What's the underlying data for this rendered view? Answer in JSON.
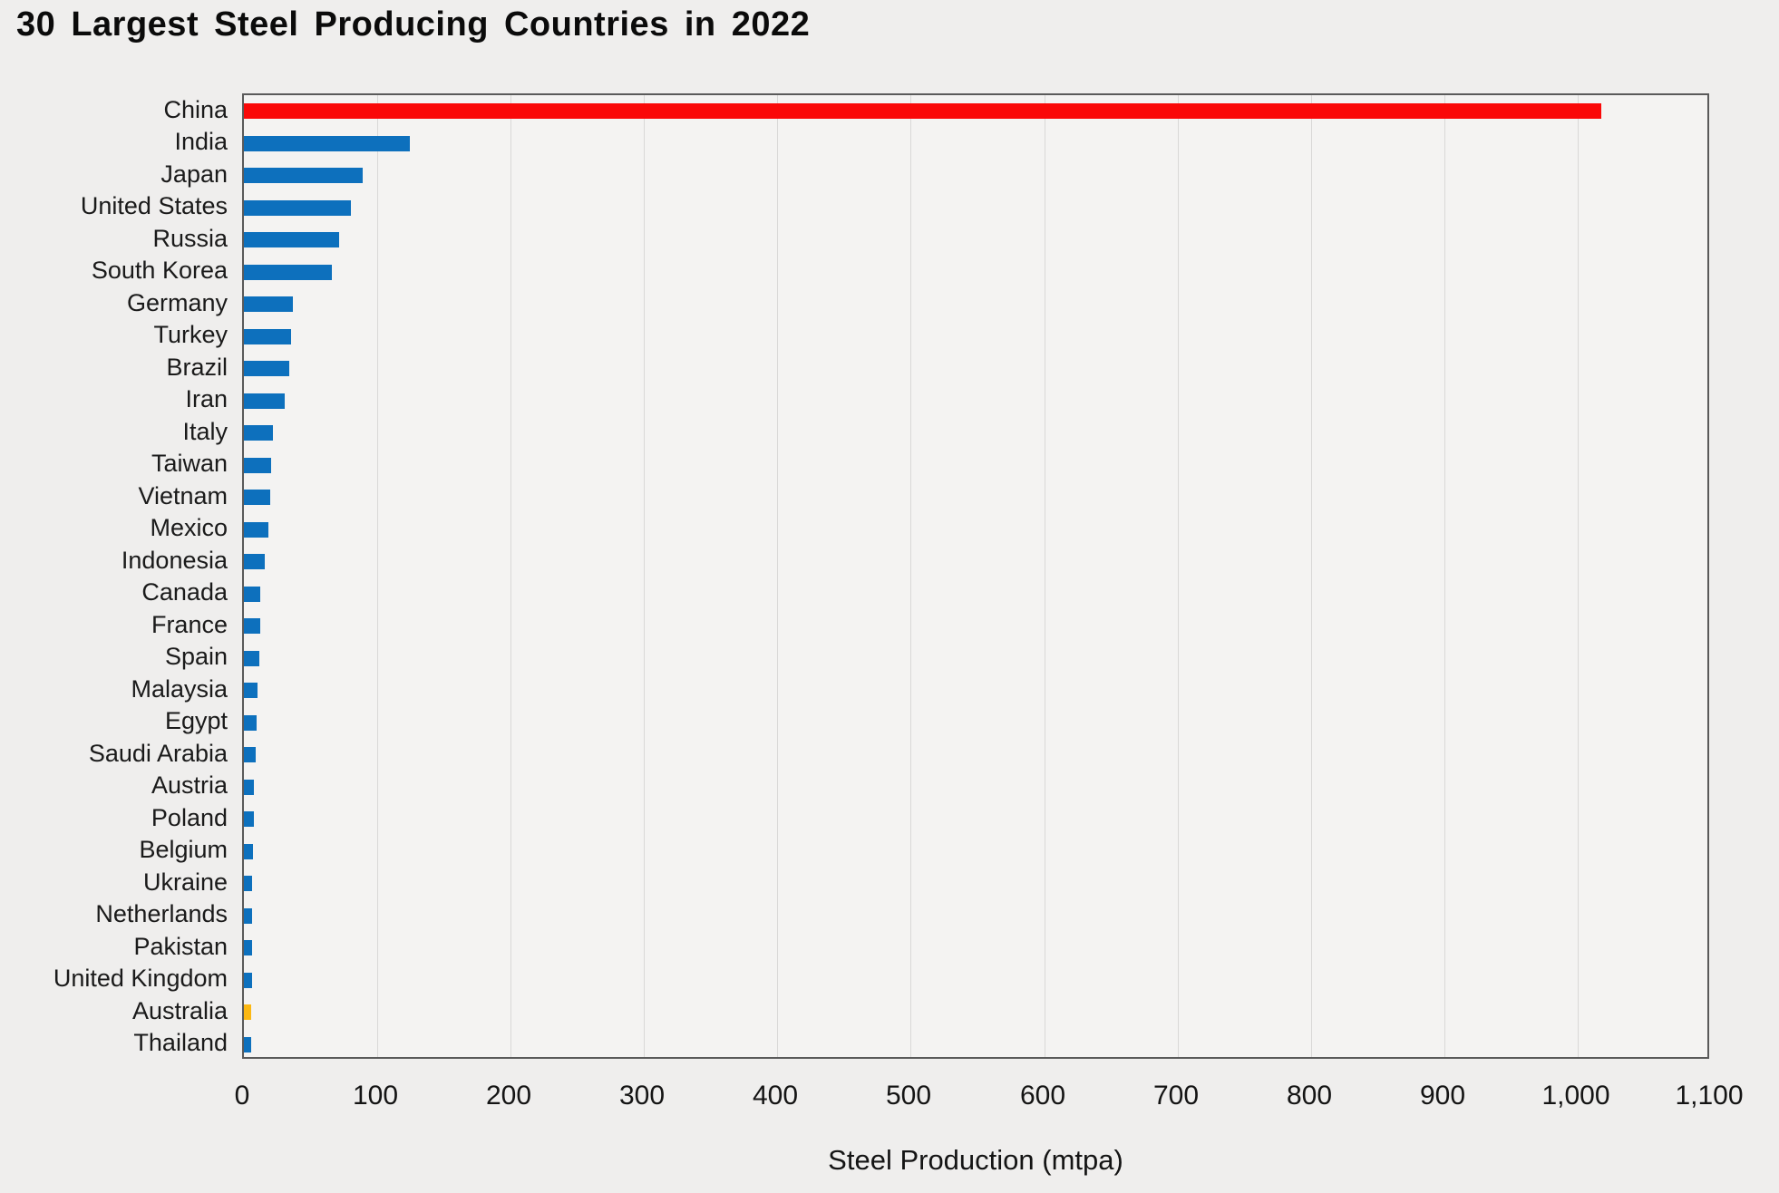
{
  "chart_data": {
    "type": "bar",
    "orientation": "horizontal",
    "title": "30 Largest Steel Producing Countries in 2022",
    "xlabel": "Steel Production (mtpa)",
    "ylabel": "",
    "xlim": [
      0,
      1100
    ],
    "grid": "vertical gridlines every 100, legend none",
    "x_ticks": [
      {
        "value": 0,
        "label": "0"
      },
      {
        "value": 100,
        "label": "100"
      },
      {
        "value": 200,
        "label": "200"
      },
      {
        "value": 300,
        "label": "300"
      },
      {
        "value": 400,
        "label": "400"
      },
      {
        "value": 500,
        "label": "500"
      },
      {
        "value": 600,
        "label": "600"
      },
      {
        "value": 700,
        "label": "700"
      },
      {
        "value": 800,
        "label": "800"
      },
      {
        "value": 900,
        "label": "900"
      },
      {
        "value": 1000,
        "label": "1,000"
      },
      {
        "value": 1100,
        "label": "1,100"
      }
    ],
    "categories": [
      "China",
      "India",
      "Japan",
      "United States",
      "Russia",
      "South Korea",
      "Germany",
      "Turkey",
      "Brazil",
      "Iran",
      "Italy",
      "Taiwan",
      "Vietnam",
      "Mexico",
      "Indonesia",
      "Canada",
      "France",
      "Spain",
      "Malaysia",
      "Egypt",
      "Saudi Arabia",
      "Austria",
      "Poland",
      "Belgium",
      "Ukraine",
      "Netherlands",
      "Pakistan",
      "United Kingdom",
      "Australia",
      "Thailand"
    ],
    "values": [
      1018,
      124.7,
      89.2,
      80.5,
      71.5,
      65.9,
      36.8,
      35.1,
      34.0,
      30.6,
      21.6,
      20.7,
      20.0,
      18.2,
      15.6,
      12.1,
      12.1,
      11.5,
      10.0,
      9.8,
      9.1,
      7.5,
      7.4,
      6.9,
      6.3,
      6.1,
      6.0,
      6.0,
      5.7,
      5.4
    ],
    "bar_color_default": "#0d70bd",
    "bar_color_highlights": {
      "China": "#fa0808",
      "Australia": "#fcb813"
    }
  },
  "colors": {
    "page_background": "#efeeed",
    "plot_background": "#f4f3f2",
    "plot_border": "#5a5a5a",
    "gridline": "#d9d8d7",
    "text": "#111111"
  }
}
